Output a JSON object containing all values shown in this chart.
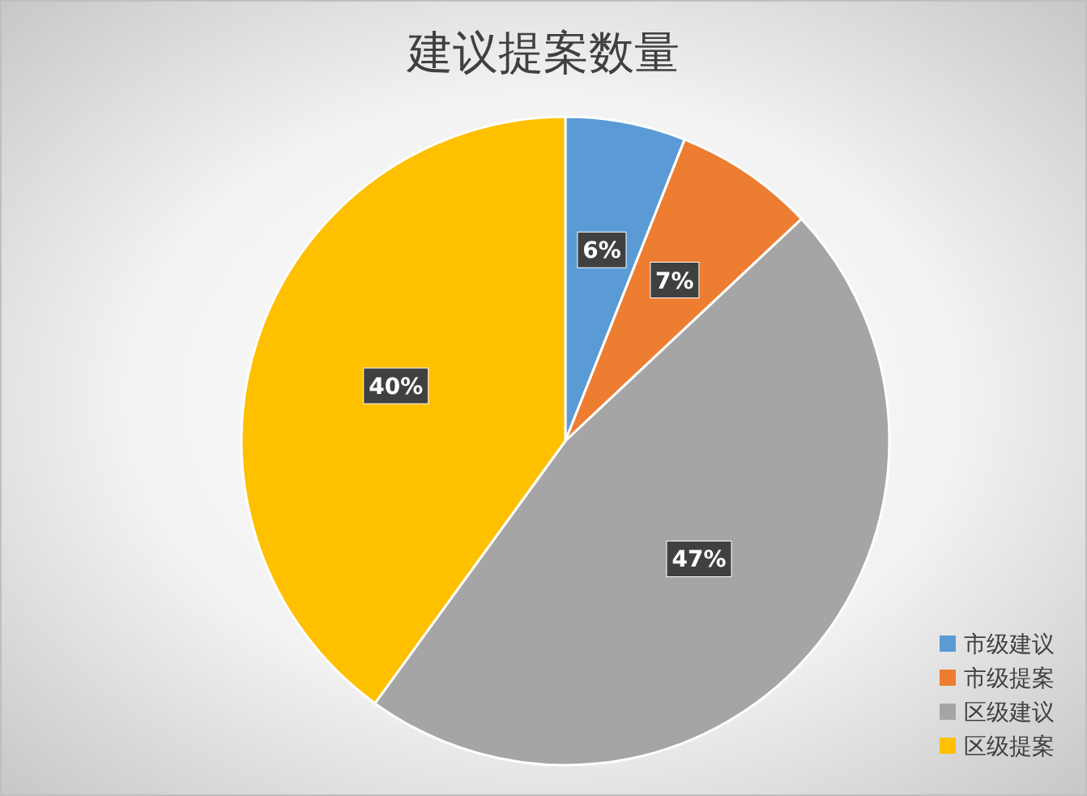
{
  "chart_data": {
    "type": "pie",
    "title": "建议提案数量",
    "categories": [
      "市级建议",
      "市级提案",
      "区级建议",
      "区级提案"
    ],
    "values": [
      6,
      7,
      47,
      40
    ],
    "colors": [
      "#5b9bd5",
      "#ed7d31",
      "#a5a5a5",
      "#ffc000"
    ],
    "value_labels": [
      "6%",
      "7%",
      "47%",
      "40%"
    ],
    "legend": "bottom right"
  }
}
